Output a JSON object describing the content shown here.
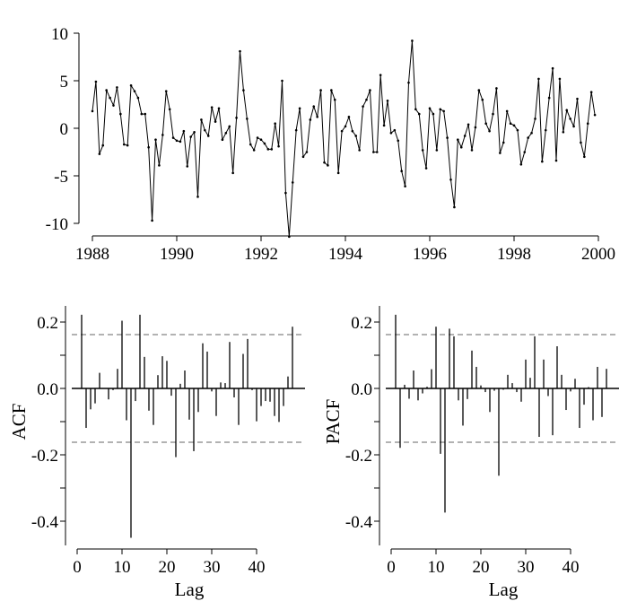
{
  "chart_data": [
    {
      "type": "line",
      "start": 1988,
      "frequency": 12,
      "x_ticks": [
        "1988",
        "1990",
        "1992",
        "1994",
        "1996",
        "1998",
        "2000"
      ],
      "y_ticks": [
        "10",
        "5",
        "0",
        "-5",
        "-10"
      ],
      "xlim": [
        1988,
        2000
      ],
      "ylim": [
        -11.5,
        10
      ],
      "marker": "point",
      "values": [
        1.8,
        4.9,
        -2.7,
        -1.8,
        4.0,
        3.2,
        2.4,
        4.3,
        1.5,
        -1.7,
        -1.8,
        4.5,
        3.9,
        3.2,
        1.5,
        1.5,
        -2.0,
        -9.7,
        -1.2,
        -3.9,
        -0.7,
        3.9,
        2.0,
        -1.0,
        -1.3,
        -1.4,
        -0.3,
        -4.0,
        -0.9,
        -0.4,
        -7.2,
        0.9,
        -0.2,
        -0.8,
        2.2,
        0.7,
        2.1,
        -1.2,
        -0.5,
        0.2,
        -4.7,
        1.1,
        8.1,
        4.0,
        1.0,
        -1.7,
        -2.3,
        -1.0,
        -1.2,
        -1.6,
        -2.2,
        -2.2,
        0.5,
        -1.9,
        5.0,
        -6.8,
        -11.4,
        -5.7,
        -0.2,
        2.1,
        -3.0,
        -2.5,
        0.9,
        2.3,
        1.2,
        4.0,
        -3.6,
        -3.9,
        4.0,
        3.0,
        -4.7,
        -0.3,
        0.2,
        1.2,
        -0.3,
        -0.8,
        -2.3,
        2.3,
        3.0,
        4.0,
        -2.5,
        -2.5,
        5.6,
        0.3,
        2.9,
        -0.5,
        -0.2,
        -1.3,
        -4.5,
        -6.1,
        4.8,
        9.2,
        2.0,
        1.5,
        -2.3,
        -4.2,
        2.1,
        1.5,
        -2.3,
        2.0,
        1.8,
        -1.0,
        -5.4,
        -8.3,
        -1.2,
        -2.0,
        -0.8,
        0.4,
        -2.3,
        0.1,
        4.0,
        3.0,
        0.5,
        -0.3,
        1.5,
        4.2,
        -2.6,
        -1.5,
        1.8,
        0.5,
        0.3,
        -0.2,
        -3.8,
        -2.5,
        -1.0,
        -0.5,
        1.0,
        5.2,
        -3.5,
        -0.2,
        3.2,
        6.3,
        -3.4,
        5.2,
        -0.4,
        1.9,
        1.0,
        0.2,
        3.1,
        -1.5,
        -3.0,
        0.5,
        3.8,
        1.4
      ]
    },
    {
      "type": "bar",
      "ylabel": "ACF",
      "xlabel": "Lag",
      "x_ticks": [
        "0",
        "10",
        "20",
        "30",
        "40"
      ],
      "y_ticks": [
        "0.2",
        "0.0",
        "-0.2",
        "-0.4"
      ],
      "ylim": [
        -0.47,
        0.25
      ],
      "confidence_bound": 0.162,
      "lags": [
        1,
        2,
        3,
        4,
        5,
        6,
        7,
        8,
        9,
        10,
        11,
        12,
        13,
        14,
        15,
        16,
        17,
        18,
        19,
        20,
        21,
        22,
        23,
        24,
        25,
        26,
        27,
        28,
        29,
        30,
        31,
        32,
        33,
        34,
        35,
        36,
        37,
        38,
        39,
        40,
        41,
        42,
        43,
        44,
        45,
        46,
        47,
        48
      ],
      "values": [
        0.222,
        -0.119,
        -0.063,
        -0.045,
        0.047,
        0.0,
        -0.033,
        -0.005,
        0.059,
        0.204,
        -0.096,
        -0.45,
        -0.038,
        0.222,
        0.095,
        -0.067,
        -0.11,
        0.04,
        0.097,
        0.083,
        -0.022,
        -0.207,
        0.014,
        0.054,
        -0.094,
        -0.189,
        -0.071,
        0.136,
        0.111,
        -0.009,
        -0.083,
        0.018,
        0.016,
        0.14,
        -0.027,
        -0.11,
        0.104,
        0.149,
        -0.005,
        -0.099,
        -0.053,
        -0.038,
        -0.04,
        -0.083,
        -0.101,
        -0.053,
        0.036,
        0.186
      ]
    },
    {
      "type": "bar",
      "ylabel": "PACF",
      "xlabel": "Lag",
      "x_ticks": [
        "0",
        "10",
        "20",
        "30",
        "40"
      ],
      "y_ticks": [
        "0.2",
        "0.0",
        "-0.2",
        "-0.4"
      ],
      "ylim": [
        -0.47,
        0.25
      ],
      "confidence_bound": 0.162,
      "lags": [
        1,
        2,
        3,
        4,
        5,
        6,
        7,
        8,
        9,
        10,
        11,
        12,
        13,
        14,
        15,
        16,
        17,
        18,
        19,
        20,
        21,
        22,
        23,
        24,
        25,
        26,
        27,
        28,
        29,
        30,
        31,
        32,
        33,
        34,
        35,
        36,
        37,
        38,
        39,
        40,
        41,
        42,
        43,
        44,
        45,
        46,
        47,
        48
      ],
      "values": [
        0.222,
        -0.179,
        0.011,
        -0.031,
        0.054,
        -0.036,
        -0.015,
        0.005,
        0.058,
        0.186,
        -0.197,
        -0.374,
        0.18,
        0.157,
        -0.036,
        -0.112,
        -0.032,
        0.114,
        0.065,
        0.009,
        -0.011,
        -0.071,
        -0.007,
        -0.263,
        -0.004,
        0.041,
        0.016,
        -0.011,
        -0.04,
        0.087,
        0.032,
        0.157,
        -0.146,
        0.087,
        -0.023,
        -0.141,
        0.127,
        0.041,
        -0.065,
        -0.009,
        0.029,
        -0.119,
        -0.049,
        0.004,
        -0.096,
        0.065,
        -0.086,
        0.059
      ]
    }
  ]
}
